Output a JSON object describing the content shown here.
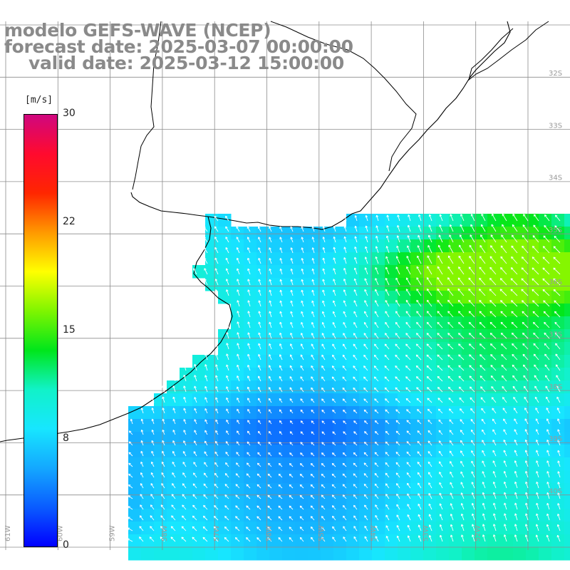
{
  "title": {
    "line1": "modelo GEFS-WAVE (NCEP)",
    "line2": "forecast date: 2025-03-07 00:00:00",
    "line3": "valid date: 2025-03-12 15:00:00"
  },
  "colorbar": {
    "unit": "[m/s]",
    "ticks": [
      "30",
      "22",
      "15",
      "8",
      "0"
    ],
    "tick_values": [
      30,
      22,
      15,
      8,
      0
    ],
    "min": 0,
    "max": 30,
    "stops": [
      "#0000ff",
      "#0a5cff",
      "#14a8ff",
      "#17e6ff",
      "#11f2c8",
      "#00e61b",
      "#7ff500",
      "#ffff00",
      "#ff9900",
      "#ff2600",
      "#ff0a2e",
      "#d0077f"
    ]
  },
  "lat_labels": [
    "32S",
    "33S",
    "34S",
    "35S",
    "36S",
    "37S",
    "38S",
    "39S",
    "40S"
  ],
  "lon_labels": [
    "61W",
    "60W",
    "59W",
    "58W",
    "57W",
    "56W",
    "55W",
    "54W",
    "53W",
    "52W"
  ],
  "colors": {
    "land": "#ffffff",
    "coast": "#000000",
    "grid": "#8c8c8c",
    "arrow": "#ffffff",
    "title": "#8a8a8a"
  }
}
